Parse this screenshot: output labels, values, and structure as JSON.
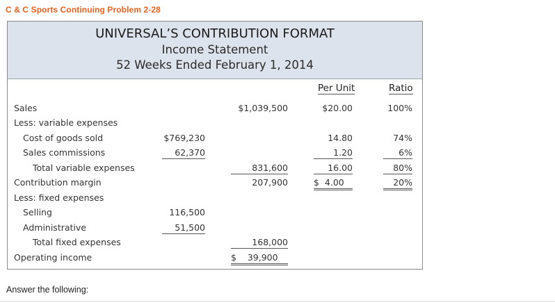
{
  "problem_title": "C & C Sports Continuing Problem 2-28",
  "statement": {
    "title": "UNIVERSAL’S CONTRIBUTION FORMAT",
    "subtitle": "Income Statement",
    "period": "52 Weeks Ended February 1, 2014",
    "col_per_unit": "Per Unit",
    "col_ratio": "Ratio",
    "rows": {
      "sales": {
        "label": "Sales",
        "total": "$1,039,500",
        "per_unit": "$20.00",
        "ratio": "100%"
      },
      "less_variable": {
        "label": "Less: variable expenses"
      },
      "cogs": {
        "label": "Cost of goods sold",
        "detail": "$769,230",
        "per_unit": "14.80",
        "ratio": "74%"
      },
      "commissions": {
        "label": "Sales commissions",
        "detail": "62,370",
        "per_unit": "1.20",
        "ratio": "6%"
      },
      "total_variable": {
        "label": "Total variable expenses",
        "total": "831,600",
        "per_unit": "16.00",
        "ratio": "80%"
      },
      "contribution": {
        "label": "Contribution margin",
        "total": "207,900",
        "per_unit": "$  4.00",
        "ratio": "20%"
      },
      "less_fixed": {
        "label": "Less: fixed expenses"
      },
      "selling": {
        "label": "Selling",
        "detail": "116,500"
      },
      "administrative": {
        "label": "Administrative",
        "detail": "51,500"
      },
      "total_fixed": {
        "label": "Total fixed expenses",
        "total": "168,000"
      },
      "operating": {
        "label": "Operating income",
        "total": "$    39,900"
      }
    }
  },
  "answer_prompt": "Answer the following:"
}
